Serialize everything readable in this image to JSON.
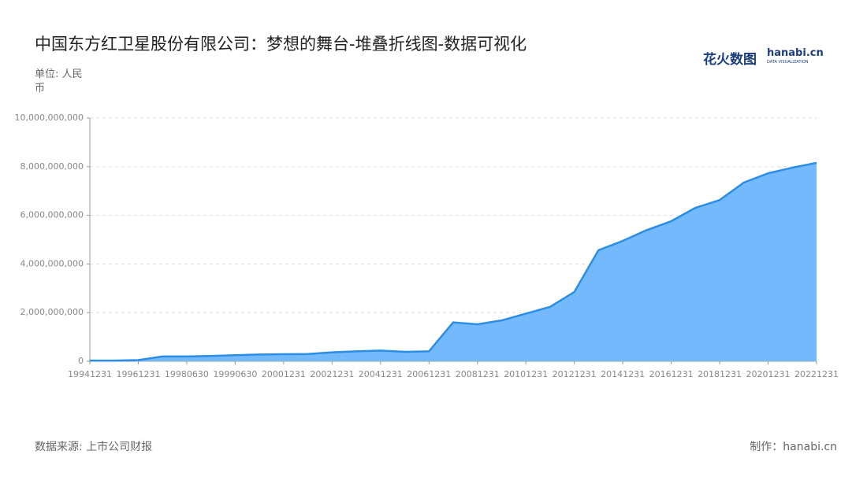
{
  "chart_data": {
    "type": "area",
    "title": "中国东方红卫星股份有限公司：梦想的舞台-堆叠折线图-数据可视化",
    "unit_label": "单位: 人民币",
    "source": "数据来源: 上市公司财报",
    "credit": "制作：hanabi.cn",
    "logo": {
      "name": "花火数图",
      "site": "hanabi.cn",
      "tagline": "DATA VISUALIZATION"
    },
    "categories": [
      "19941231",
      null,
      "19961231",
      null,
      "19980630",
      null,
      "19990630",
      null,
      "20001231",
      null,
      "20021231",
      null,
      "20041231",
      null,
      "20061231",
      null,
      "20081231",
      null,
      "20101231",
      null,
      "20121231",
      null,
      "20141231",
      null,
      "20161231",
      null,
      "20181231",
      null,
      "20201231",
      null,
      "20221231"
    ],
    "series": [
      {
        "color": "#2a8ee8",
        "fill": "#74b9fb",
        "values": [
          30000000,
          30000000,
          50000000,
          200000000,
          200000000,
          220000000,
          250000000,
          280000000,
          290000000,
          300000000,
          370000000,
          410000000,
          440000000,
          390000000,
          410000000,
          1600000000,
          1520000000,
          1680000000,
          1960000000,
          2240000000,
          2850000000,
          4570000000,
          4950000000,
          5400000000,
          5760000000,
          6310000000,
          6630000000,
          7350000000,
          7730000000,
          7960000000,
          8160000000
        ]
      }
    ],
    "ylim": [
      0,
      10000000000
    ],
    "yticks": [
      0,
      {
        "value": 2000000000,
        "label": "2,000,000,000"
      },
      {
        "value": 4000000000,
        "label": "4,000,000,000"
      },
      {
        "value": 6000000000,
        "label": "6,000,000,000"
      },
      {
        "value": 8000000000,
        "label": "8,000,000,000"
      },
      {
        "value": 10000000000,
        "label": "10,000,000,000"
      }
    ],
    "grid": true
  }
}
